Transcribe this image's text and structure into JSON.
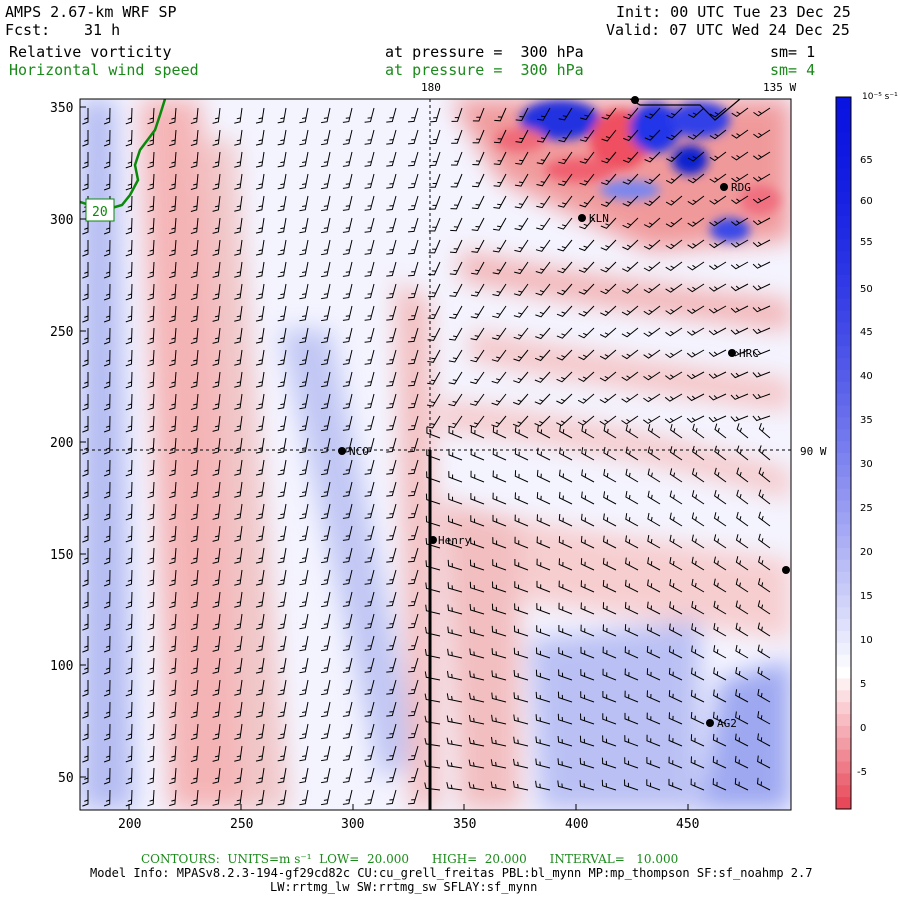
{
  "header": {
    "model": "AMPS 2.67-km WRF SP",
    "fcst_label": "Fcst:",
    "fcst_value": "31 h",
    "init": "Init: 00 UTC Tue 23 Dec 25",
    "valid": "Valid: 07 UTC Wed 24 Dec 25",
    "field1": "Relative vorticity",
    "field1_level": "at pressure =  300 hPa",
    "field1_sm": "sm= 1",
    "field2": "Horizontal wind speed",
    "field2_level": "at pressure =  300 hPa",
    "field2_sm": "sm= 4"
  },
  "map": {
    "meridian_top": "180",
    "meridian_top_right": "135 W",
    "meridian_right": "90 W",
    "contour_label": "20",
    "stations": [
      {
        "name": "RDG"
      },
      {
        "name": "KLN"
      },
      {
        "name": "HRC"
      },
      {
        "name": "NCO"
      },
      {
        "name": "Henry"
      },
      {
        "name": "AG2"
      }
    ],
    "x_ticks": [
      "200",
      "250",
      "300",
      "350",
      "400",
      "450"
    ],
    "y_ticks": [
      "350",
      "300",
      "250",
      "200",
      "150",
      "100",
      "50"
    ]
  },
  "colorbar": {
    "unit": "10⁻⁵ s⁻¹",
    "labels": [
      "65",
      "60",
      "55",
      "50",
      "45",
      "40",
      "35",
      "30",
      "25",
      "20",
      "15",
      "10",
      "5",
      "0",
      "-5"
    ],
    "neg_color": "#e8495a",
    "pos_color": "#0a14e0"
  },
  "footer": {
    "contours": "CONTOURS:  UNITS=m s⁻¹  LOW=  20.000      HIGH=  20.000      INTERVAL=   10.000",
    "model_info": "Model Info: MPASv8.2.3-194-gf29cd82c CU:cu_grell_freitas PBL:bl_mynn MP:mp_thompson SF:sf_noahmp 2.7",
    "model_info2": "LW:rrtmg_lw SW:rrtmg_sw SFLAY:sf_mynn"
  }
}
